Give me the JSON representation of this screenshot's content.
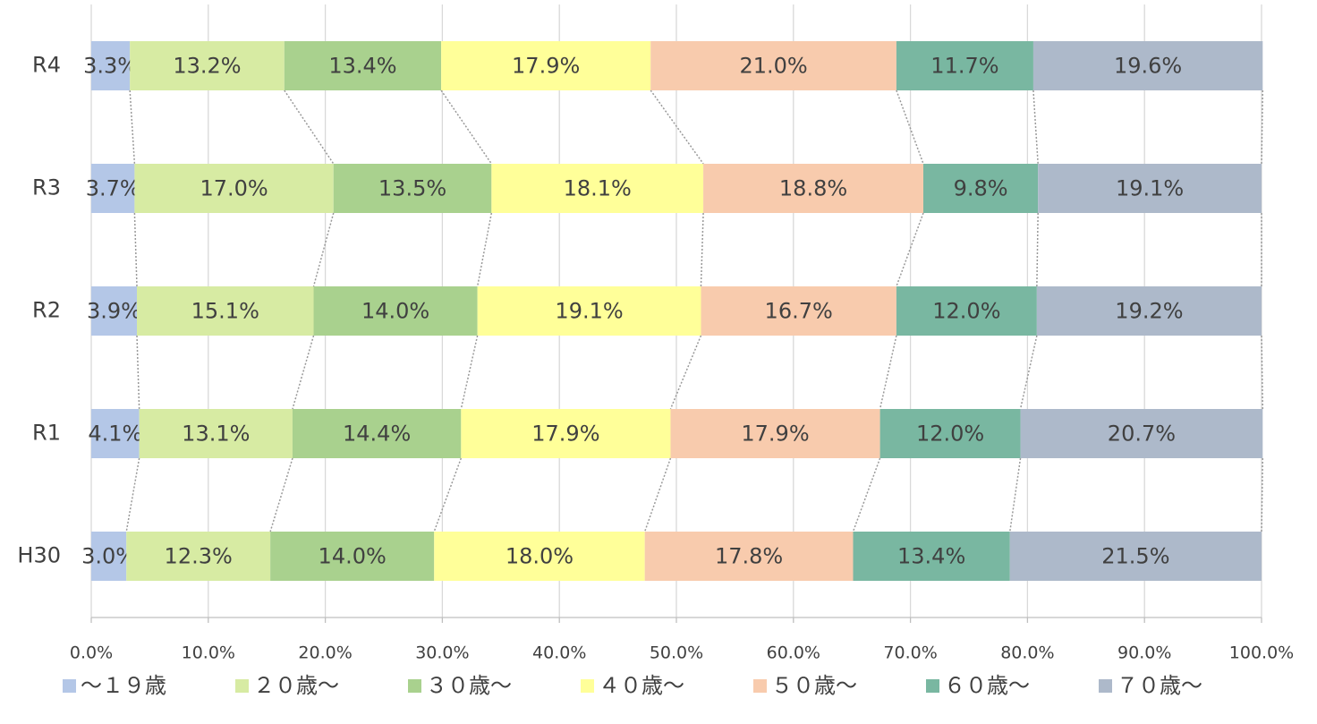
{
  "chart_data": {
    "type": "stacked_bar_horizontal",
    "categories": [
      "R4",
      "R3",
      "R2",
      "R1",
      "H30"
    ],
    "series": [
      {
        "name": "～１９歳",
        "color": "#b4c7e7",
        "values": [
          3.3,
          3.7,
          3.9,
          4.1,
          3.0
        ],
        "value_labels": [
          "3.3%",
          "3.7%",
          "3.9%",
          "4.1%",
          "3.0%"
        ]
      },
      {
        "name": "２０歳～",
        "color": "#d7eba3",
        "values": [
          13.2,
          17.0,
          15.1,
          13.1,
          12.3
        ],
        "value_labels": [
          "13.2%",
          "17.0%",
          "15.1%",
          "13.1%",
          "12.3%"
        ]
      },
      {
        "name": "３０歳～",
        "color": "#a9d18e",
        "values": [
          13.4,
          13.5,
          14.0,
          14.4,
          14.0
        ],
        "value_labels": [
          "13.4%",
          "13.5%",
          "14.0%",
          "14.4%",
          "14.0%"
        ]
      },
      {
        "name": "４０歳～",
        "color": "#ffff99",
        "values": [
          17.9,
          18.1,
          19.1,
          17.9,
          18.0
        ],
        "value_labels": [
          "17.9%",
          "18.1%",
          "19.1%",
          "17.9%",
          "18.0%"
        ]
      },
      {
        "name": "５０歳～",
        "color": "#f8cbad",
        "values": [
          21.0,
          18.8,
          16.7,
          17.9,
          17.8
        ],
        "value_labels": [
          "21.0%",
          "18.8%",
          "16.7%",
          "17.9%",
          "17.8%"
        ]
      },
      {
        "name": "６０歳～",
        "color": "#79b7a1",
        "values": [
          11.7,
          9.8,
          12.0,
          12.0,
          13.4
        ],
        "value_labels": [
          "11.7%",
          "9.8%",
          "12.0%",
          "12.0%",
          "13.4%"
        ]
      },
      {
        "name": "７０歳～",
        "color": "#adb9ca",
        "values": [
          19.6,
          19.1,
          19.2,
          20.7,
          21.5
        ],
        "value_labels": [
          "19.6%",
          "19.1%",
          "19.2%",
          "20.7%",
          "21.5%"
        ]
      }
    ],
    "xlim": [
      0,
      100
    ],
    "xticks": [
      {
        "value": 0,
        "label": "0.0%"
      },
      {
        "value": 10,
        "label": "10.0%"
      },
      {
        "value": 20,
        "label": "20.0%"
      },
      {
        "value": 30,
        "label": "30.0%"
      },
      {
        "value": 40,
        "label": "40.0%"
      },
      {
        "value": 50,
        "label": "50.0%"
      },
      {
        "value": 60,
        "label": "60.0%"
      },
      {
        "value": 70,
        "label": "70.0%"
      },
      {
        "value": 80,
        "label": "80.0%"
      },
      {
        "value": 90,
        "label": "90.0%"
      },
      {
        "value": 100,
        "label": "100.0%"
      }
    ],
    "grid": true,
    "legend": "bottom"
  }
}
